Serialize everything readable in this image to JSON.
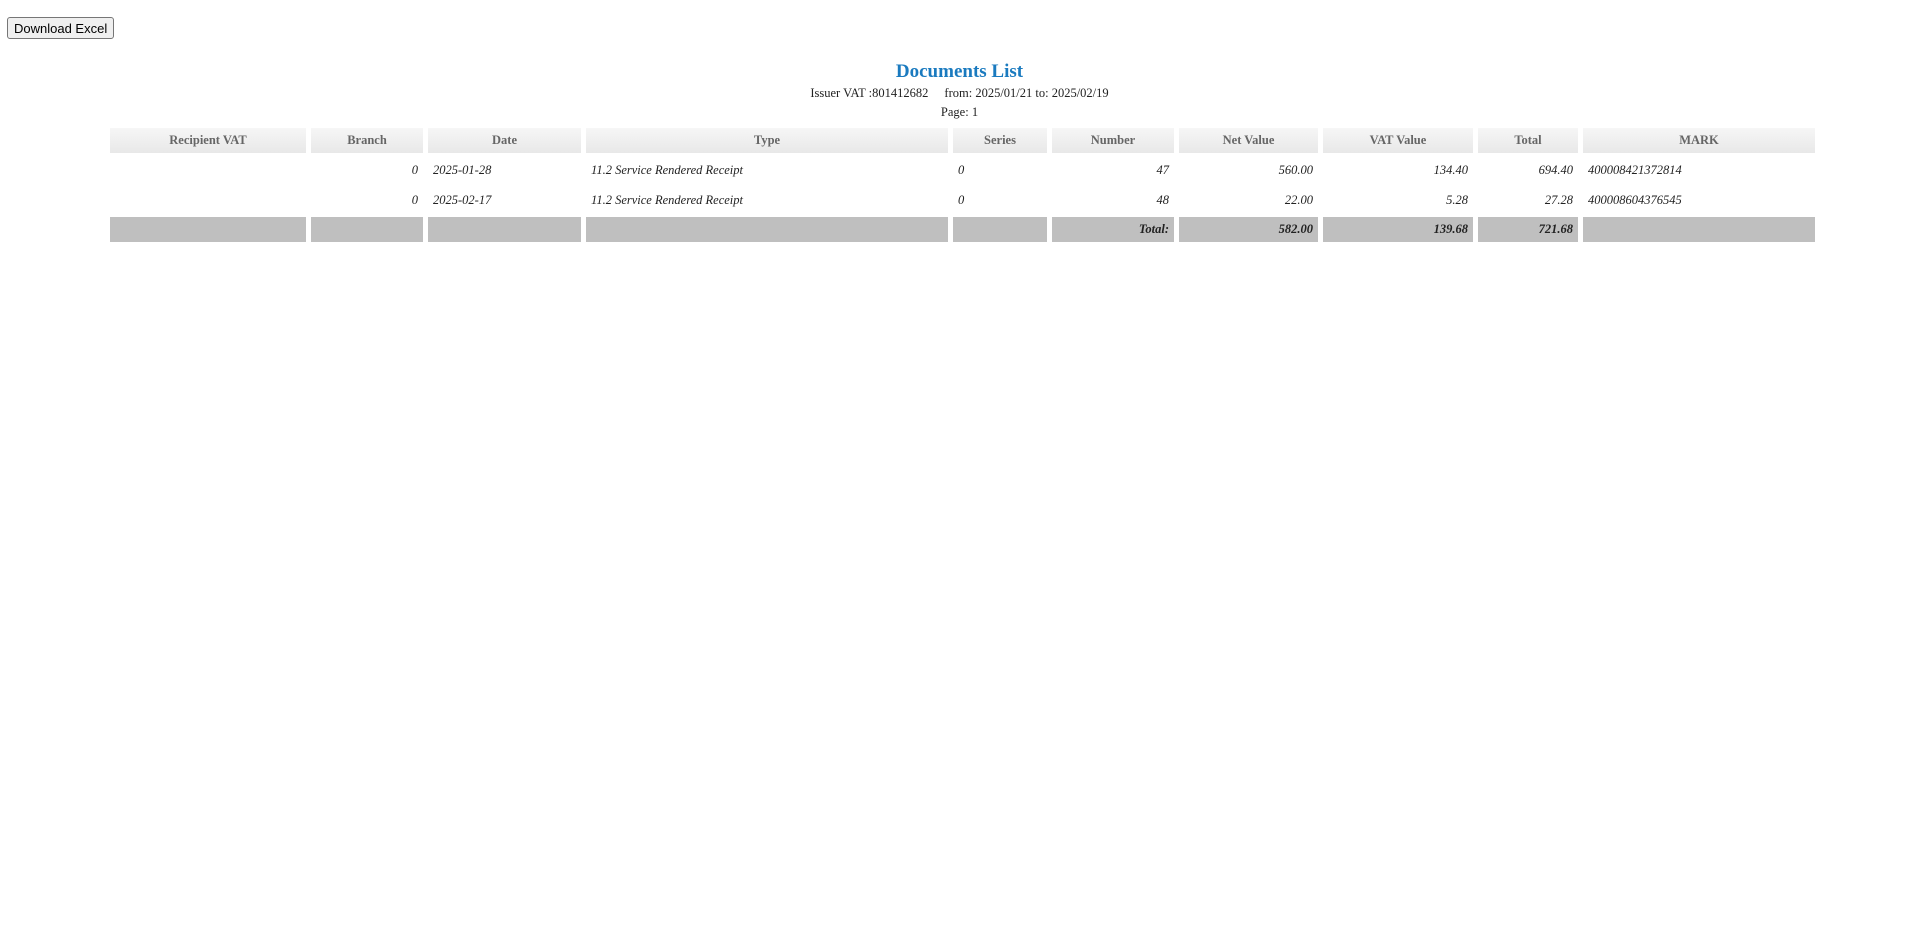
{
  "toolbar": {
    "download_label": "Download Excel"
  },
  "header": {
    "title": "Documents List",
    "issuer": "Issuer VAT :801412682",
    "period": "from: 2025/01/21 to: 2025/02/19",
    "page": "Page: 1"
  },
  "table": {
    "columns": [
      "Recipient VAT",
      "Branch",
      "Date",
      "Type",
      "Series",
      "Number",
      "Net Value",
      "VAT Value",
      "Total",
      "MARK"
    ],
    "rows": [
      [
        "",
        "0",
        "2025-01-28",
        "11.2 Service Rendered Receipt",
        "0",
        "47",
        "560.00",
        "134.40",
        "694.40",
        "400008421372814"
      ],
      [
        "",
        "0",
        "2025-02-17",
        "11.2 Service Rendered Receipt",
        "0",
        "48",
        "22.00",
        "5.28",
        "27.28",
        "400008604376545"
      ]
    ],
    "totals": {
      "label": "Total:",
      "net": "582.00",
      "vat": "139.68",
      "total": "721.68"
    }
  }
}
